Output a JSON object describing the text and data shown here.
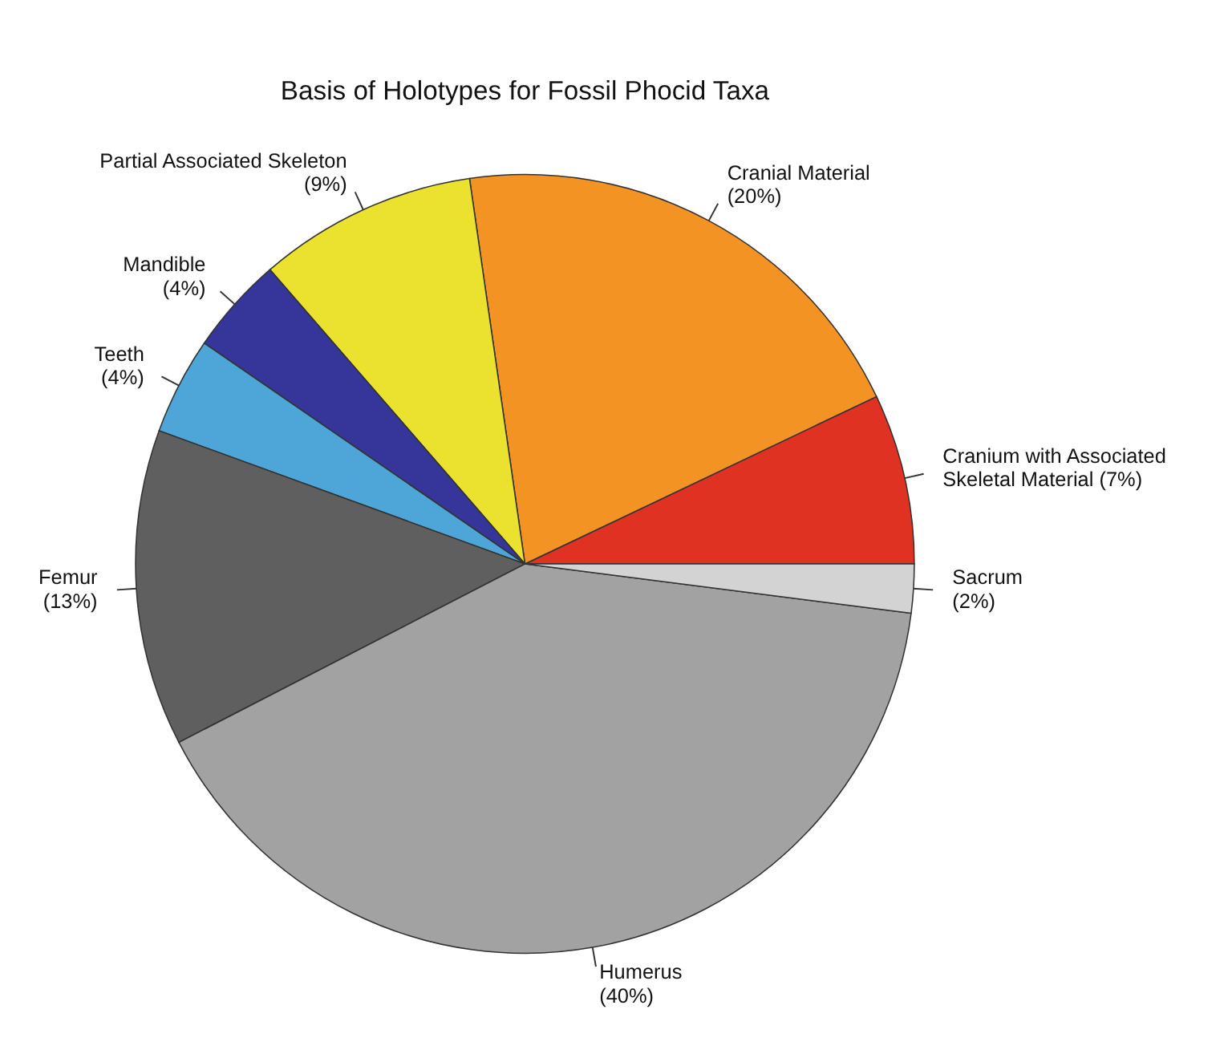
{
  "chart_data": {
    "type": "pie",
    "title": "Basis of Holotypes for Fossil Phocid Taxa",
    "categories": [
      "Cranium with Associated Skeletal Material",
      "Cranial Material",
      "Partial Associated Skeleton",
      "Mandible",
      "Teeth",
      "Femur",
      "Humerus",
      "Sacrum"
    ],
    "values": [
      7,
      20,
      9,
      4,
      4,
      13,
      40,
      2
    ],
    "colors": [
      "#e03222",
      "#f39324",
      "#ebe12f",
      "#35359a",
      "#4ea6d8",
      "#5f5f5f",
      "#a2a2a2",
      "#d3d3d3"
    ],
    "value_labels": [
      "(7%)",
      "(20%)",
      "(9%)",
      "(4%)",
      "(4%)",
      "(13%)",
      "(40%)",
      "(2%)"
    ]
  }
}
